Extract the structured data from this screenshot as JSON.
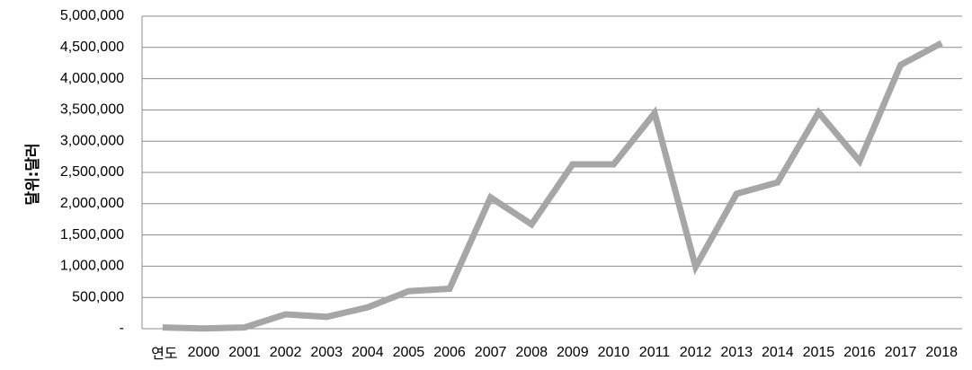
{
  "chart_data": {
    "type": "line",
    "ylabel": "달위:달러",
    "first_category_label": "연도",
    "categories": [
      "",
      "2000",
      "2001",
      "2002",
      "2003",
      "2004",
      "2005",
      "2006",
      "2007",
      "2008",
      "2009",
      "2010",
      "2011",
      "2012",
      "2013",
      "2014",
      "2015",
      "2016",
      "2017",
      "2018"
    ],
    "values": [
      20000,
      5000,
      20000,
      230000,
      190000,
      340000,
      600000,
      640000,
      2100000,
      1670000,
      2630000,
      2630000,
      3450000,
      990000,
      2160000,
      2340000,
      3460000,
      2680000,
      4220000,
      4570000
    ],
    "y_ticks": [
      {
        "value": 0,
        "label": "-"
      },
      {
        "value": 500000,
        "label": "500,000"
      },
      {
        "value": 1000000,
        "label": "1,000,000"
      },
      {
        "value": 1500000,
        "label": "1,500,000"
      },
      {
        "value": 2000000,
        "label": "2,000,000"
      },
      {
        "value": 2500000,
        "label": "2,500,000"
      },
      {
        "value": 3000000,
        "label": "3,000,000"
      },
      {
        "value": 3500000,
        "label": "3,500,000"
      },
      {
        "value": 4000000,
        "label": "4,000,000"
      },
      {
        "value": 4500000,
        "label": "4,500,000"
      },
      {
        "value": 5000000,
        "label": "5,000,000"
      }
    ],
    "ylim": [
      0,
      5000000
    ],
    "grid": true,
    "series_color": "#a6a6a6"
  }
}
